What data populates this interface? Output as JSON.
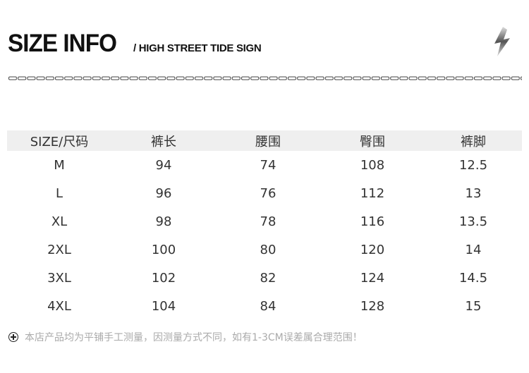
{
  "header": {
    "title": "SIZE INFO",
    "subtitle": "/ HIGH STREET TIDE SIGN",
    "icon": "lightning-bolt-icon"
  },
  "table": {
    "columns": [
      "SIZE/尺码",
      "裤长",
      "腰围",
      "臀围",
      "裤脚"
    ],
    "rows": [
      [
        "M",
        "94",
        "74",
        "108",
        "12.5"
      ],
      [
        "L",
        "96",
        "76",
        "112",
        "13"
      ],
      [
        "XL",
        "98",
        "78",
        "116",
        "13.5"
      ],
      [
        "2XL",
        "100",
        "80",
        "120",
        "14"
      ],
      [
        "3XL",
        "102",
        "82",
        "124",
        "14.5"
      ],
      [
        "4XL",
        "104",
        "84",
        "128",
        "15"
      ]
    ]
  },
  "note": {
    "icon": "plus-circle-icon",
    "text": "本店产品均为平铺手工测量，因测量方式不同，如有1-3CM误差属合理范围！"
  }
}
